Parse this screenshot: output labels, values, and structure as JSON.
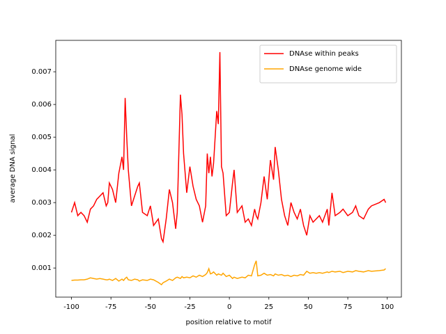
{
  "chart_data": {
    "type": "line",
    "xlabel": "position relative to motif",
    "ylabel": "average DNA signal",
    "x": [
      -100,
      -98,
      -96,
      -94,
      -92,
      -90,
      -88,
      -86,
      -84,
      -82,
      -80,
      -78,
      -77,
      -76,
      -74,
      -72,
      -70,
      -68,
      -67,
      -66,
      -65,
      -64,
      -62,
      -60,
      -58,
      -57,
      -55,
      -52,
      -50,
      -48,
      -45,
      -43,
      -42,
      -40,
      -38,
      -36,
      -34,
      -33,
      -31,
      -30,
      -29,
      -27,
      -25,
      -23,
      -21,
      -19,
      -17,
      -15,
      -14,
      -13,
      -12,
      -11,
      -10,
      -8,
      -7,
      -6,
      -5,
      -4,
      -2,
      0,
      2,
      3,
      5,
      8,
      10,
      12,
      14,
      16,
      17,
      18,
      20,
      22,
      24,
      26,
      28,
      29,
      31,
      33,
      35,
      37,
      39,
      41,
      43,
      45,
      47,
      49,
      51,
      53,
      55,
      57,
      59,
      62,
      63,
      65,
      67,
      70,
      72,
      75,
      78,
      80,
      82,
      85,
      88,
      90,
      95,
      98,
      99
    ],
    "series": [
      {
        "name": "DNAse within peaks",
        "color": "#ff0000",
        "values": [
          0.0027,
          0.003,
          0.0026,
          0.0027,
          0.0026,
          0.0024,
          0.0028,
          0.0029,
          0.0031,
          0.0032,
          0.0033,
          0.0029,
          0.003,
          0.0036,
          0.0034,
          0.003,
          0.0039,
          0.0044,
          0.004,
          0.0062,
          0.005,
          0.004,
          0.0029,
          0.0032,
          0.0035,
          0.0036,
          0.0027,
          0.0026,
          0.0029,
          0.0023,
          0.0025,
          0.0019,
          0.0018,
          0.0025,
          0.0034,
          0.003,
          0.0022,
          0.0027,
          0.0063,
          0.0057,
          0.0045,
          0.0033,
          0.0041,
          0.0035,
          0.0031,
          0.0029,
          0.0024,
          0.0029,
          0.0045,
          0.0039,
          0.0044,
          0.0038,
          0.0042,
          0.0058,
          0.0054,
          0.0076,
          0.0041,
          0.0039,
          0.0026,
          0.0027,
          0.0036,
          0.004,
          0.0027,
          0.0029,
          0.0024,
          0.0025,
          0.0023,
          0.0028,
          0.0026,
          0.0025,
          0.003,
          0.0038,
          0.0031,
          0.0043,
          0.0037,
          0.0047,
          0.004,
          0.0031,
          0.0026,
          0.0023,
          0.003,
          0.0027,
          0.0025,
          0.0028,
          0.0023,
          0.002,
          0.0026,
          0.0024,
          0.0025,
          0.0026,
          0.0024,
          0.0028,
          0.0023,
          0.0033,
          0.0026,
          0.0027,
          0.0028,
          0.0026,
          0.0027,
          0.0029,
          0.0026,
          0.0025,
          0.0028,
          0.0029,
          0.003,
          0.0031,
          0.003
        ]
      },
      {
        "name": "DNAse genome wide",
        "color": "#ffa500",
        "values": [
          0.00062,
          0.00063,
          0.00063,
          0.00064,
          0.00064,
          0.00066,
          0.0007,
          0.00068,
          0.00066,
          0.00068,
          0.00066,
          0.00064,
          0.00064,
          0.00066,
          0.00062,
          0.00068,
          0.0006,
          0.00066,
          0.00062,
          0.00068,
          0.00072,
          0.00064,
          0.00062,
          0.00066,
          0.00064,
          0.0006,
          0.00064,
          0.00062,
          0.00066,
          0.00064,
          0.00056,
          0.00049,
          0.00055,
          0.0006,
          0.00066,
          0.00062,
          0.0007,
          0.00072,
          0.00068,
          0.00074,
          0.0007,
          0.00072,
          0.0007,
          0.00076,
          0.00072,
          0.00078,
          0.00074,
          0.0008,
          0.00086,
          0.00098,
          0.00082,
          0.00084,
          0.00088,
          0.00078,
          0.00082,
          0.0008,
          0.00078,
          0.00084,
          0.00074,
          0.00078,
          0.00068,
          0.00072,
          0.00068,
          0.00072,
          0.0007,
          0.00078,
          0.00076,
          0.0011,
          0.00122,
          0.00076,
          0.00078,
          0.00084,
          0.00078,
          0.0008,
          0.00076,
          0.00082,
          0.00078,
          0.0008,
          0.00076,
          0.00078,
          0.00074,
          0.00078,
          0.00076,
          0.0008,
          0.00078,
          0.0009,
          0.00084,
          0.00086,
          0.00084,
          0.00086,
          0.00084,
          0.00088,
          0.00086,
          0.0009,
          0.00088,
          0.0009,
          0.00086,
          0.0009,
          0.00088,
          0.00092,
          0.0009,
          0.00088,
          0.00092,
          0.0009,
          0.00092,
          0.00094,
          0.00098
        ]
      }
    ],
    "xlim": [
      -109.95,
      108.95
    ],
    "xticks": [
      -100,
      -75,
      -50,
      -25,
      0,
      25,
      50,
      75,
      100
    ],
    "ylim": [
      0.00011,
      0.00796
    ],
    "yticks": [
      0.001,
      0.002,
      0.003,
      0.004,
      0.005,
      0.006,
      0.007
    ],
    "legend": "upper right"
  }
}
